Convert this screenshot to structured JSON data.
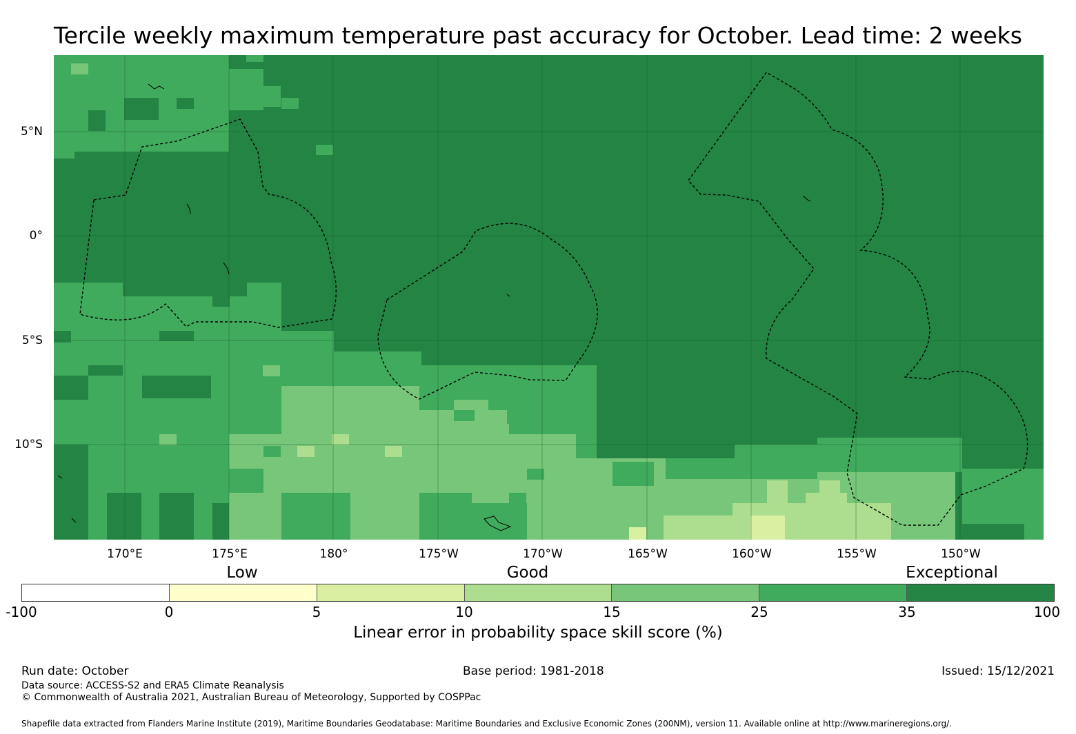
{
  "title": "Tercile weekly maximum temperature past accuracy for October. Lead time: 2 weeks",
  "map": {
    "lat_labels": [
      "5°N",
      "0°",
      "5°S",
      "10°S"
    ],
    "lon_labels": [
      "170°E",
      "175°E",
      "180°",
      "175°W",
      "170°W",
      "165°W",
      "160°W",
      "155°W",
      "150°W"
    ],
    "category_labels": [
      "Low",
      "Good",
      "Exceptional"
    ],
    "colors": {
      "exceptional": "#238443",
      "c25_35": "#41ab5d",
      "c15_25": "#78c679",
      "c10_15": "#addd8e",
      "c5_10": "#d9f0a3",
      "c0_5": "#ffffcc",
      "neg": "#ffffff"
    }
  },
  "colorbar": {
    "ticks": [
      "-100",
      "0",
      "5",
      "10",
      "15",
      "25",
      "35",
      "100"
    ],
    "colors": [
      "#ffffff",
      "#ffffcc",
      "#d9f0a3",
      "#addd8e",
      "#78c679",
      "#41ab5d",
      "#238443"
    ],
    "title": "Linear error in probability space skill score (%)"
  },
  "footer": {
    "run_date": "Run date: October",
    "base_period": "Base period: 1981-2018",
    "issued": "Issued: 15/12/2021",
    "data_source": "Data source: ACCESS-S2 and ERA5 Climate Reanalysis",
    "copyright": "© Commonwealth of Australia 2021, Australian Bureau of Meteorology, Supported by COSPPac",
    "shapefile": "Shapefile data extracted from Flanders Marine Institute (2019), Maritime Boundaries Geodatabase: Maritime Boundaries and Exclusive Economic Zones (200NM), version 11. Available online at http://www.marineregions.org/."
  }
}
